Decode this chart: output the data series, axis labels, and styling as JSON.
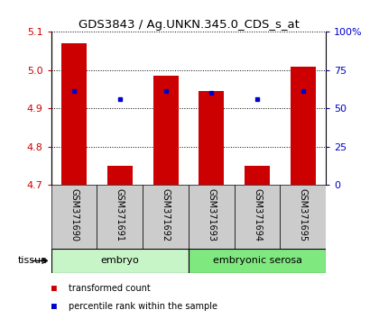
{
  "title": "GDS3843 / Ag.UNKN.345.0_CDS_s_at",
  "samples": [
    "GSM371690",
    "GSM371691",
    "GSM371692",
    "GSM371693",
    "GSM371694",
    "GSM371695"
  ],
  "transformed_count": [
    5.07,
    4.75,
    4.985,
    4.945,
    4.75,
    5.01
  ],
  "percentile_rank": [
    4.945,
    4.925,
    4.945,
    4.94,
    4.925,
    4.945
  ],
  "ylim_left": [
    4.7,
    5.1
  ],
  "ylim_right": [
    0,
    100
  ],
  "yticks_left": [
    4.7,
    4.8,
    4.9,
    5.0,
    5.1
  ],
  "yticks_right": [
    0,
    25,
    50,
    75,
    100
  ],
  "ytick_labels_right": [
    "0",
    "25",
    "50",
    "75",
    "100%"
  ],
  "tissue_groups": [
    {
      "label": "embryo",
      "start": 0,
      "end": 3,
      "color": "#c8f5c8"
    },
    {
      "label": "embryonic serosa",
      "start": 3,
      "end": 6,
      "color": "#7fe87f"
    }
  ],
  "bar_color": "#cc0000",
  "dot_color": "#0000cc",
  "bar_bottom": 4.7,
  "bar_width": 0.55,
  "bg_color_labels": "#cccccc",
  "tick_color_left": "#cc0000",
  "tick_color_right": "#0000cc",
  "legend_items": [
    {
      "color": "#cc0000",
      "label": "transformed count"
    },
    {
      "color": "#0000cc",
      "label": "percentile rank within the sample"
    }
  ],
  "tissue_label": "tissue"
}
